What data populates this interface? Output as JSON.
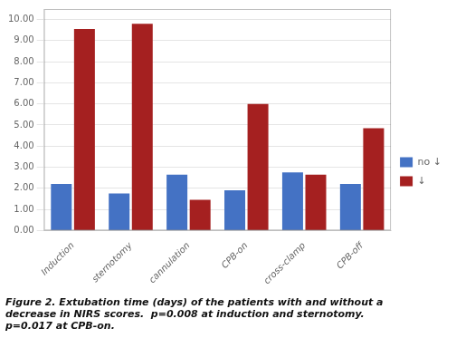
{
  "chart_data": {
    "type": "bar",
    "categories": [
      "Induction",
      "sternotomy",
      "cannulation",
      "CPB-on",
      "cross-clamp",
      "CPB-off"
    ],
    "series": [
      {
        "name": "no ↓",
        "color": "#4472C4",
        "values": [
          2.2,
          1.75,
          2.65,
          1.9,
          2.75,
          2.2
        ]
      },
      {
        "name": "↓",
        "color": "#A52020",
        "values": [
          9.55,
          9.8,
          1.45,
          6.0,
          2.65,
          4.85
        ]
      }
    ],
    "ylim": [
      0,
      10.5
    ],
    "yticks": [
      {
        "value": 0,
        "label": "0.00"
      },
      {
        "value": 1,
        "label": "1.00"
      },
      {
        "value": 2,
        "label": "2.00"
      },
      {
        "value": 3,
        "label": "3.00"
      },
      {
        "value": 4,
        "label": "4.00"
      },
      {
        "value": 5,
        "label": "5.00"
      },
      {
        "value": 6,
        "label": "6.00"
      },
      {
        "value": 7,
        "label": "7.00"
      },
      {
        "value": 8,
        "label": "8.00"
      },
      {
        "value": 9,
        "label": "9.00"
      },
      {
        "value": 10,
        "label": "10.00"
      }
    ],
    "grid": true,
    "legend": "right",
    "annotations": [
      "Figure 2. Extubation time (days) of the patients with and without a",
      "decrease in NIRS scores.  p=0.008 at induction and sternotomy.",
      "p=0.017 at CPB-on."
    ]
  }
}
